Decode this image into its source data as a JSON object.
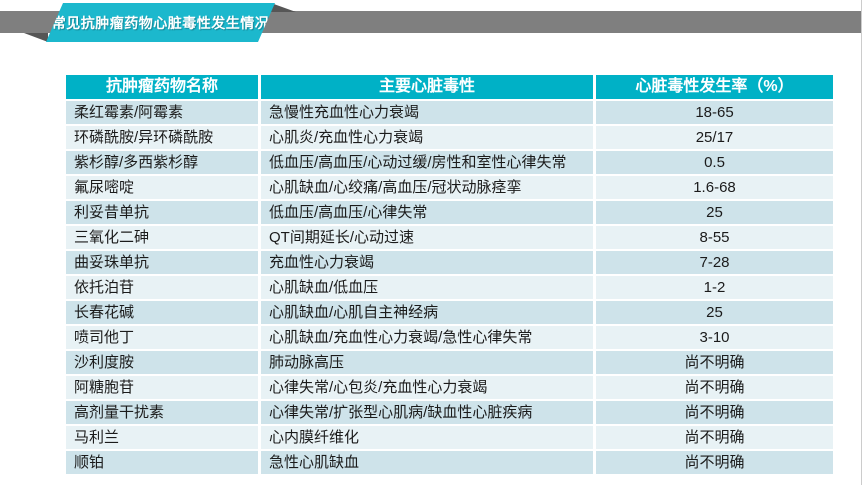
{
  "banner": {
    "title": "常见抗肿瘤药物心脏毒性发生情况"
  },
  "colors": {
    "ribbon_cyan": "#1cb8cd",
    "bar_gray": "#7f7f7f",
    "fold_gray": "#565656",
    "header_teal": "#00b1c6",
    "row_dark": "#cee3ea",
    "row_light": "#e8f2f5"
  },
  "table": {
    "headers": [
      "抗肿瘤药物名称",
      "主要心脏毒性",
      "心脏毒性发生率（%）"
    ],
    "rows": [
      [
        "柔红霉素/阿霉素",
        "急慢性充血性心力衰竭",
        "18-65"
      ],
      [
        "环磷酰胺/异环磷酰胺",
        "心肌炎/充血性心力衰竭",
        "25/17"
      ],
      [
        "紫杉醇/多西紫杉醇",
        "低血压/高血压/心动过缓/房性和室性心律失常",
        "0.5"
      ],
      [
        "氟尿嘧啶",
        "心肌缺血/心绞痛/高血压/冠状动脉痉挛",
        "1.6-68"
      ],
      [
        "利妥昔单抗",
        "低血压/高血压/心律失常",
        "25"
      ],
      [
        "三氧化二砷",
        "QT间期延长/心动过速",
        "8-55"
      ],
      [
        "曲妥珠单抗",
        "充血性心力衰竭",
        "7-28"
      ],
      [
        "依托泊苷",
        "心肌缺血/低血压",
        "1-2"
      ],
      [
        "长春花碱",
        "心肌缺血/心肌自主神经病",
        "25"
      ],
      [
        "喷司他丁",
        "心肌缺血/充血性心力衰竭/急性心律失常",
        "3-10"
      ],
      [
        "沙利度胺",
        "肺动脉高压",
        "尚不明确"
      ],
      [
        "阿糖胞苷",
        "心律失常/心包炎/充血性心力衰竭",
        "尚不明确"
      ],
      [
        "高剂量干扰素",
        "心律失常/扩张型心肌病/缺血性心脏疾病",
        "尚不明确"
      ],
      [
        "马利兰",
        "心内膜纤维化",
        "尚不明确"
      ],
      [
        "顺铂",
        "急性心肌缺血",
        "尚不明确"
      ]
    ]
  }
}
